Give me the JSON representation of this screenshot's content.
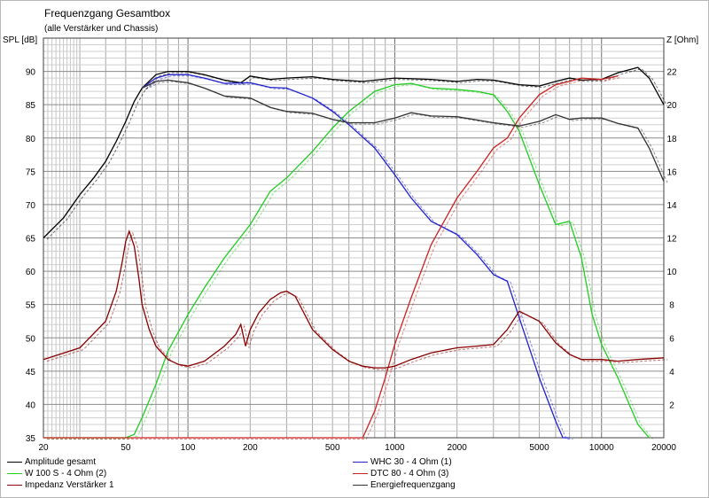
{
  "title": "Frequenzgang Gesamtbox",
  "subtitle": "(alle Verstärker und Chassis)",
  "chart_data": {
    "type": "line",
    "title": "Frequenzgang Gesamtbox",
    "subtitle": "(alle Verstärker und Chassis)",
    "x_scale": "log",
    "xlim": [
      20,
      20000
    ],
    "x_ticks": [
      "20",
      "50",
      "100",
      "200",
      "500",
      "1000",
      "2000",
      "5000",
      "10000",
      "20000"
    ],
    "ylabel": "SPL [dB]",
    "ylim": [
      35,
      95
    ],
    "y_ticks": [
      "35",
      "40",
      "45",
      "50",
      "55",
      "60",
      "65",
      "70",
      "75",
      "80",
      "85",
      "90"
    ],
    "y2label": "Z [Ohm]",
    "y2lim": [
      0,
      24
    ],
    "y2_ticks": [
      "2",
      "4",
      "6",
      "8",
      "10",
      "12",
      "14",
      "16",
      "18",
      "20",
      "22"
    ],
    "grid": true,
    "legend_position": "bottom",
    "series": [
      {
        "name": "Amplitude gesamt",
        "color": "#000000",
        "axis": "left",
        "x": [
          20,
          25,
          30,
          35,
          40,
          45,
          50,
          55,
          60,
          70,
          80,
          90,
          100,
          120,
          150,
          180,
          200,
          250,
          300,
          400,
          500,
          700,
          1000,
          1500,
          2000,
          2500,
          3000,
          4000,
          5000,
          6000,
          7000,
          8000,
          10000,
          12000,
          15000,
          17000,
          20000
        ],
        "y": [
          65,
          68,
          71.5,
          74,
          76.5,
          79.5,
          82.5,
          85.5,
          87.5,
          89.5,
          90,
          90,
          90,
          89.5,
          88.7,
          88.3,
          89.3,
          88.8,
          89,
          89.2,
          88.8,
          88.5,
          89,
          88.8,
          88.5,
          88.8,
          88.7,
          88,
          87.8,
          88.5,
          89,
          88.7,
          88.8,
          89.8,
          90.6,
          89,
          85
        ]
      },
      {
        "name": "WHC 30 - 4 Ohm (1)",
        "color": "#2222cc",
        "axis": "left",
        "x": [
          60,
          70,
          80,
          100,
          120,
          150,
          200,
          250,
          300,
          400,
          500,
          600,
          800,
          1000,
          1200,
          1500,
          2000,
          2500,
          3000,
          3500,
          4000,
          5000,
          6000,
          6500,
          7000
        ],
        "y": [
          87.5,
          89,
          89.5,
          89.5,
          89,
          88.2,
          88.3,
          87.6,
          87.5,
          86,
          84,
          82,
          78.5,
          74.5,
          71,
          67.5,
          65.5,
          62.5,
          59.5,
          58.5,
          53,
          44,
          37.5,
          35,
          35
        ]
      },
      {
        "name": "W 100 S - 4 Ohm (2)",
        "color": "#22cc22",
        "axis": "left",
        "x": [
          20,
          50,
          55,
          60,
          70,
          80,
          100,
          120,
          150,
          200,
          250,
          300,
          400,
          500,
          600,
          800,
          1000,
          1200,
          1500,
          2000,
          2500,
          3000,
          3500,
          4000,
          5000,
          6000,
          7000,
          8000,
          9000,
          10000,
          12000,
          15000,
          17000
        ],
        "y": [
          35,
          35,
          35.5,
          38,
          43,
          48,
          53.5,
          57.5,
          62,
          67,
          72,
          74,
          78,
          81.5,
          84,
          87,
          88,
          88.2,
          87.5,
          87.3,
          87,
          86.5,
          84,
          81,
          73,
          67,
          67.5,
          62,
          53.5,
          49,
          44,
          37,
          35
        ]
      },
      {
        "name": "DTC 80 - 4 Ohm (3)",
        "color": "#cc2222",
        "axis": "left",
        "x": [
          20,
          700,
          800,
          900,
          1000,
          1200,
          1500,
          2000,
          2500,
          3000,
          3500,
          4000,
          5000,
          6000,
          7000,
          8000,
          10000,
          12000
        ],
        "y": [
          35,
          35,
          39,
          44,
          49,
          56,
          64,
          71,
          75,
          78.5,
          80,
          83,
          86.5,
          88,
          88.5,
          89,
          88.8,
          89.3
        ]
      },
      {
        "name": "Impedanz Verstärker 1",
        "color": "#880000",
        "axis": "right",
        "x": [
          20,
          30,
          40,
          45,
          48,
          50,
          52,
          55,
          58,
          60,
          65,
          70,
          80,
          90,
          100,
          120,
          150,
          170,
          180,
          190,
          200,
          220,
          250,
          280,
          300,
          330,
          400,
          500,
          600,
          700,
          800,
          900,
          1000,
          1200,
          1500,
          2000,
          2500,
          3000,
          3500,
          4000,
          5000,
          6000,
          7000,
          8000,
          10000,
          12000,
          15000,
          20000
        ],
        "y": [
          4.7,
          5.4,
          7,
          8.8,
          10.5,
          11.8,
          12.4,
          11.5,
          9.5,
          8,
          6.5,
          5.5,
          4.7,
          4.4,
          4.3,
          4.6,
          5.5,
          6.2,
          6.8,
          5.5,
          6.5,
          7.5,
          8.3,
          8.7,
          8.8,
          8.5,
          6.5,
          5.3,
          4.6,
          4.3,
          4.2,
          4.2,
          4.3,
          4.7,
          5.1,
          5.4,
          5.5,
          5.6,
          6.5,
          7.6,
          7,
          5.7,
          5,
          4.7,
          4.7,
          4.6,
          4.7,
          4.8
        ]
      },
      {
        "name": "Energiefrequenzgang",
        "color": "#333333",
        "axis": "left",
        "x": [
          60,
          70,
          80,
          100,
          120,
          150,
          200,
          250,
          300,
          400,
          500,
          600,
          800,
          1000,
          1200,
          1500,
          2000,
          3000,
          4000,
          5000,
          6000,
          7000,
          8000,
          10000,
          12000,
          15000,
          17000,
          20000
        ],
        "y": [
          87.5,
          88.5,
          88.7,
          88.3,
          87.5,
          86.3,
          86,
          84.6,
          84,
          83.7,
          82.8,
          82.3,
          82.3,
          83,
          83.8,
          83.3,
          83.2,
          82.3,
          81.8,
          82.5,
          83.5,
          82.8,
          83,
          83,
          82.2,
          81.5,
          78.5,
          73.5
        ]
      }
    ]
  },
  "legend": [
    {
      "label": "Amplitude gesamt",
      "color": "#000000"
    },
    {
      "label": "WHC 30 - 4 Ohm (1)",
      "color": "#2222cc"
    },
    {
      "label": "W 100 S - 4 Ohm (2)",
      "color": "#22cc22"
    },
    {
      "label": "DTC 80 - 4 Ohm (3)",
      "color": "#cc2222"
    },
    {
      "label": "Impedanz Verstärker 1",
      "color": "#880000"
    },
    {
      "label": "Energiefrequenzgang",
      "color": "#333333"
    }
  ]
}
